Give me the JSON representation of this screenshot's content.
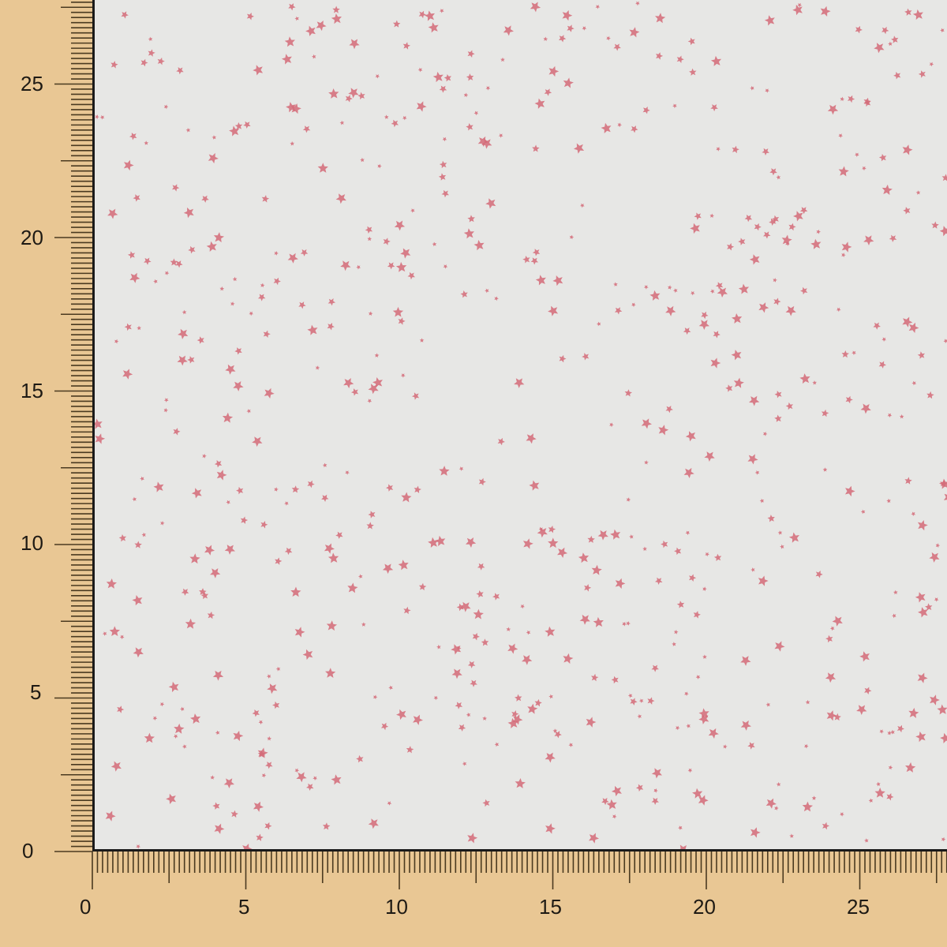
{
  "colors": {
    "ruler": "#e9c794",
    "fabric": "#e7e7e5",
    "star": "#d46a78",
    "tick": "#4a3a20"
  },
  "ruler_left": {
    "labels": [
      "0",
      "5",
      "10",
      "15",
      "20",
      "25"
    ]
  },
  "ruler_bottom": {
    "labels": [
      "0",
      "5",
      "10",
      "15",
      "20",
      "25"
    ]
  },
  "pattern": {
    "motif": "star-icon",
    "description_visible": false
  }
}
